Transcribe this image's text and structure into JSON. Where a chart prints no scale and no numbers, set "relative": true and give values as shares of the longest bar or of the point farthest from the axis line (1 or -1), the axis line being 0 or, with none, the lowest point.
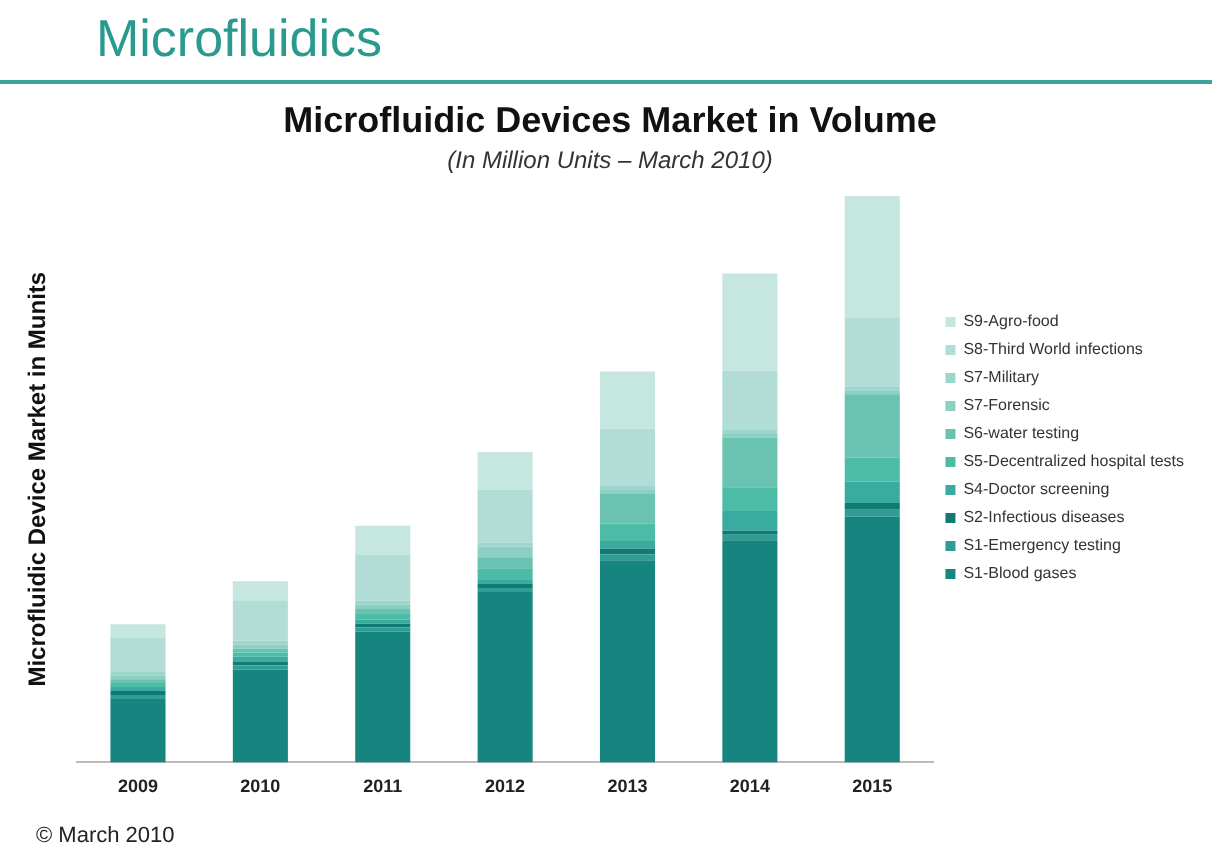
{
  "chart_data": {
    "type": "bar",
    "stacked": true,
    "relative": true,
    "title": "Microfluidic Devices Market in Volume",
    "subtitle": "(In Million Units – March 2010)",
    "ylabel": "Microfluidic Device Market in Munits",
    "annotations": [
      "Microfluidics",
      "© March 2010"
    ],
    "legend": "right",
    "grid": false,
    "categories": [
      "2009",
      "2010",
      "2011",
      "2012",
      "2013",
      "2014",
      "2015"
    ],
    "series": [
      {
        "name": "S1-Blood gases",
        "color": "#17857f",
        "values": [
          0.112,
          0.164,
          0.231,
          0.301,
          0.357,
          0.392,
          0.434
        ]
      },
      {
        "name": "S1-Emergency testing",
        "color": "#2f9d96",
        "values": [
          0.007,
          0.007,
          0.007,
          0.007,
          0.01,
          0.01,
          0.012
        ]
      },
      {
        "name": "S2-Infectious diseases",
        "color": "#127a75",
        "values": [
          0.007,
          0.007,
          0.007,
          0.007,
          0.01,
          0.007,
          0.012
        ]
      },
      {
        "name": "S4-Doctor screening",
        "color": "#3aab9f",
        "values": [
          0.007,
          0.009,
          0.007,
          0.007,
          0.014,
          0.035,
          0.038
        ]
      },
      {
        "name": "S5-Decentralized hospital tests",
        "color": "#4cbca6",
        "values": [
          0.007,
          0.007,
          0.01,
          0.021,
          0.031,
          0.042,
          0.042
        ]
      },
      {
        "name": "S6-water testing",
        "color": "#6ac2b1",
        "values": [
          0.007,
          0.007,
          0.01,
          0.019,
          0.052,
          0.087,
          0.112
        ]
      },
      {
        "name": "S7-Forensic",
        "color": "#8ccfc3",
        "values": [
          0.007,
          0.007,
          0.007,
          0.019,
          0.007,
          0.007,
          0.007
        ]
      },
      {
        "name": "S7-Military",
        "color": "#9dd6cc",
        "values": [
          0.007,
          0.007,
          0.007,
          0.007,
          0.007,
          0.007,
          0.007
        ]
      },
      {
        "name": "S8-Third World infections",
        "color": "#b1ddd6",
        "values": [
          0.059,
          0.07,
          0.08,
          0.094,
          0.101,
          0.105,
          0.122
        ]
      },
      {
        "name": "S9-Agro-food",
        "color": "#c6e6e0",
        "values": [
          0.024,
          0.035,
          0.052,
          0.066,
          0.101,
          0.171,
          0.214
        ]
      }
    ]
  }
}
